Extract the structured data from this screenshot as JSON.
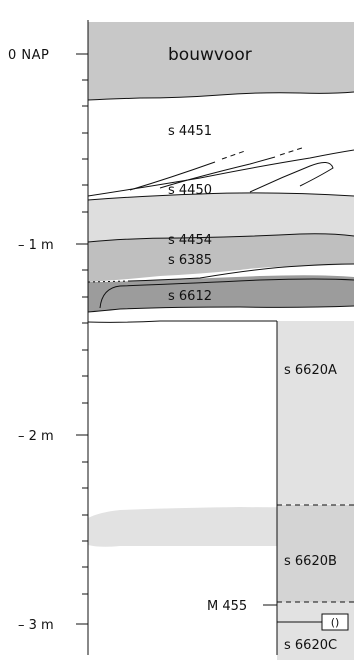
{
  "scale": {
    "labels": [
      "0 NAP",
      "– 1 m",
      "– 2 m",
      "– 3 m"
    ]
  },
  "layers": {
    "bouwvoor": "bouwvoor",
    "s4451": "s 4451",
    "s4450": "s 4450",
    "s4454": "s 4454",
    "s6385": "s 6385",
    "s6612": "s 6612",
    "s6620a": "s 6620A",
    "s6620b": "s 6620B",
    "s6620c": "s 6620C"
  },
  "find": {
    "label": "M 455",
    "symbol": "()"
  },
  "colors": {
    "bouwvoor": "#c8c8c8",
    "s4454": "#dedede",
    "s6385": "#bfbfbf",
    "s6612": "#9b9b9b",
    "s6620": "#e2e2e2",
    "s6620b": "#d2d2d2",
    "line": "#111111"
  }
}
